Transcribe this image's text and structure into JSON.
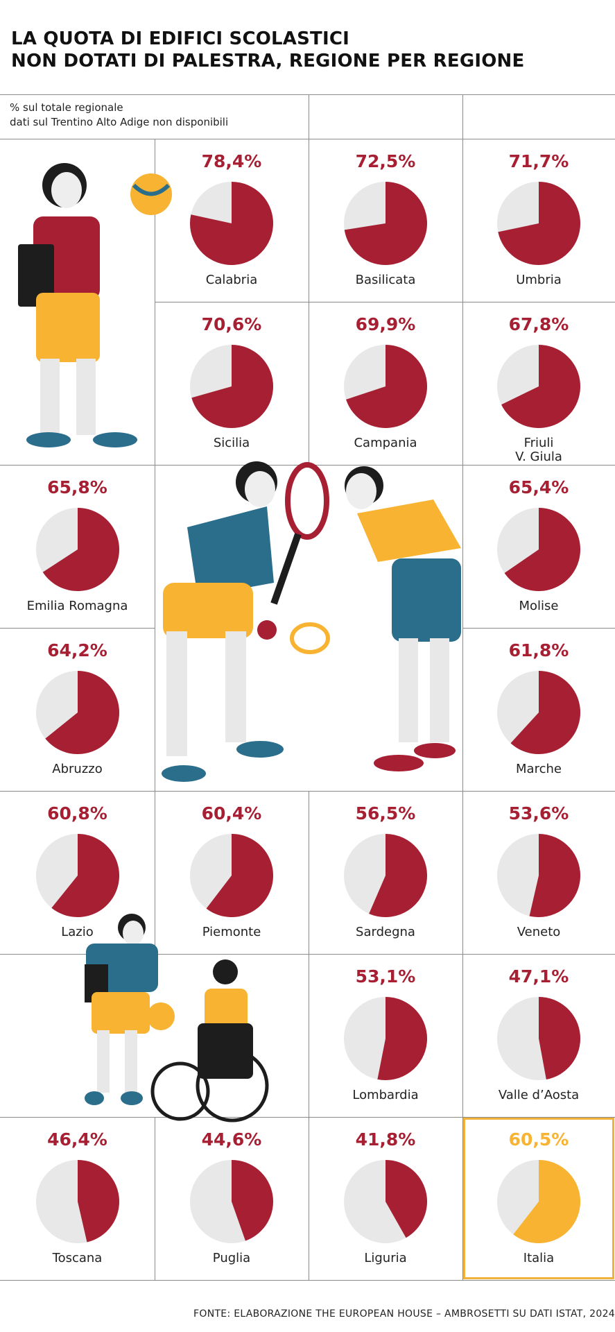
{
  "title_lines": [
    "LA QUOTA DI EDIFICI SCOLASTICI",
    "NON DOTATI DI PALESTRA, REGIONE PER REGIONE"
  ],
  "note_lines": [
    "% sul totale regionale",
    "dati sul Trentino Alto Adige non disponibili"
  ],
  "source": "FONTE: ELABORAZIONE THE EUROPEAN HOUSE – AMBROSETTI SU DATI ISTAT, 2024",
  "colors": {
    "main": "#a71f32",
    "rest": "#e8e8e8",
    "highlight": "#f7b331"
  },
  "chart_data": {
    "type": "pie",
    "title": "LA QUOTA DI EDIFICI SCOLASTICI NON DOTATI DI PALESTRA, REGIONE PER REGIONE",
    "unit": "% sul totale regionale",
    "series": [
      {
        "label": "Calabria",
        "display": "78,4%",
        "value": 78.4
      },
      {
        "label": "Basilicata",
        "display": "72,5%",
        "value": 72.5
      },
      {
        "label": "Umbria",
        "display": "71,7%",
        "value": 71.7
      },
      {
        "label": "Sicilia",
        "display": "70,6%",
        "value": 70.6
      },
      {
        "label": "Campania",
        "display": "69,9%",
        "value": 69.9
      },
      {
        "label": "Friuli\nV. Giula",
        "display": "67,8%",
        "value": 67.8
      },
      {
        "label": "Emilia Romagna",
        "display": "65,8%",
        "value": 65.8
      },
      {
        "label": "Molise",
        "display": "65,4%",
        "value": 65.4
      },
      {
        "label": "Abruzzo",
        "display": "64,2%",
        "value": 64.2
      },
      {
        "label": "Marche",
        "display": "61,8%",
        "value": 61.8
      },
      {
        "label": "Lazio",
        "display": "60,8%",
        "value": 60.8
      },
      {
        "label": "Piemonte",
        "display": "60,4%",
        "value": 60.4
      },
      {
        "label": "Sardegna",
        "display": "56,5%",
        "value": 56.5
      },
      {
        "label": "Veneto",
        "display": "53,6%",
        "value": 53.6
      },
      {
        "label": "Lombardia",
        "display": "53,1%",
        "value": 53.1
      },
      {
        "label": "Valle d’Aosta",
        "display": "47,1%",
        "value": 47.1
      },
      {
        "label": "Toscana",
        "display": "46,4%",
        "value": 46.4
      },
      {
        "label": "Puglia",
        "display": "44,6%",
        "value": 44.6
      },
      {
        "label": "Liguria",
        "display": "41,8%",
        "value": 41.8
      },
      {
        "label": "Italia",
        "display": "60,5%",
        "value": 60.5,
        "highlight": true
      }
    ]
  }
}
